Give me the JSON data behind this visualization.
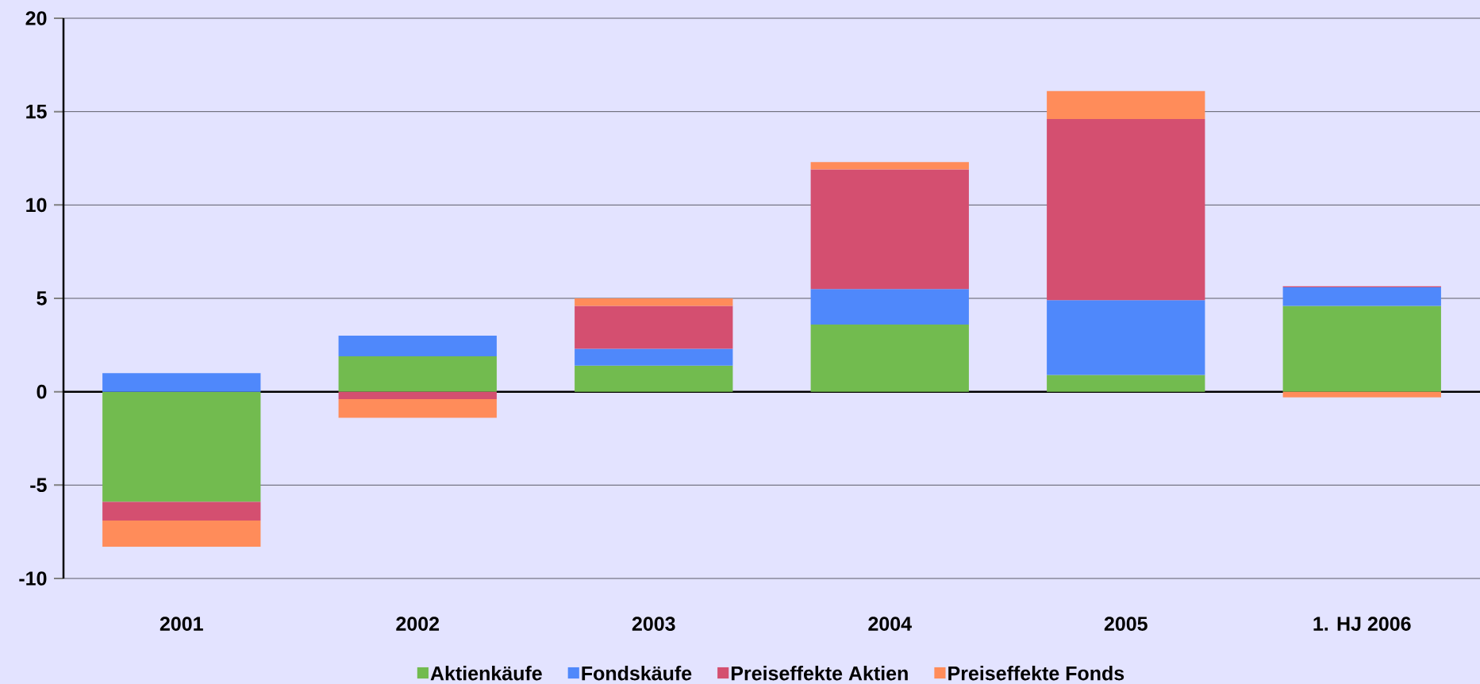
{
  "chart_data": {
    "type": "bar",
    "stacked": true,
    "categories": [
      "2001",
      "2002",
      "2003",
      "2004",
      "2005",
      "1. HJ 2006"
    ],
    "series": [
      {
        "name": "Aktienkäufe",
        "color": "#72bb4f",
        "values": [
          -5.9,
          1.9,
          1.4,
          3.6,
          0.9,
          4.6
        ]
      },
      {
        "name": "Fondskäufe",
        "color": "#4f88fb",
        "values": [
          1.0,
          1.1,
          0.9,
          1.9,
          4.0,
          1.0
        ]
      },
      {
        "name": "Preiseffekte Aktien",
        "color": "#d44f70",
        "values": [
          -1.0,
          -0.4,
          2.3,
          6.4,
          9.7,
          0.05
        ]
      },
      {
        "name": "Preiseffekte Fonds",
        "color": "#ff8c5a",
        "values": [
          -1.4,
          -1.0,
          0.4,
          0.4,
          1.5,
          -0.3
        ]
      }
    ],
    "ylim": [
      -10,
      20
    ],
    "yticks": [
      -10,
      -5,
      0,
      5,
      10,
      15,
      20
    ],
    "grid": "y",
    "legend": "bottom"
  }
}
